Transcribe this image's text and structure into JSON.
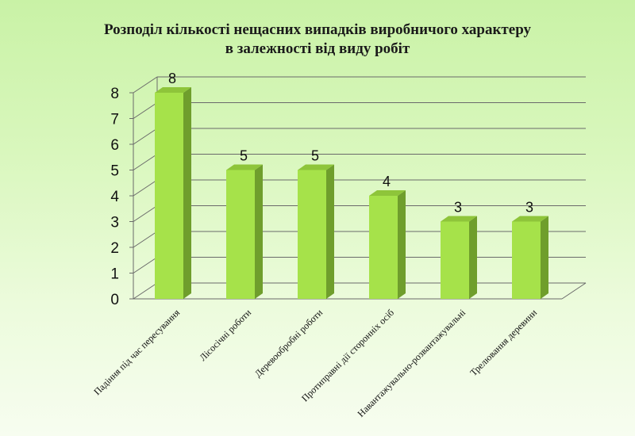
{
  "chart_data": {
    "type": "bar",
    "title_lines": [
      "Розподіл кількості нещасних випадків виробничого характеру",
      "в залежності від виду робіт"
    ],
    "categories": [
      "Падіння під час пересування",
      "Лісосічні роботи",
      "Деревообробні роботи",
      "Протиправні дії сторонніх осіб",
      "Навантажувально-розвантажувальні",
      "Трелювання деревини"
    ],
    "values": [
      8,
      5,
      5,
      4,
      3,
      3
    ],
    "data_labels": [
      "8",
      "5",
      "5",
      "4",
      "3",
      "3"
    ],
    "y_ticks": [
      "0",
      "1",
      "2",
      "3",
      "4",
      "5",
      "6",
      "7",
      "8"
    ],
    "ylim": [
      0,
      8
    ],
    "grid": true,
    "legend": "none",
    "bar_color": "#a6e24a",
    "bar_side_color": "#6f9e2c",
    "bar_top_color": "#8ec53a",
    "grid_color": "#6a6a6a"
  }
}
